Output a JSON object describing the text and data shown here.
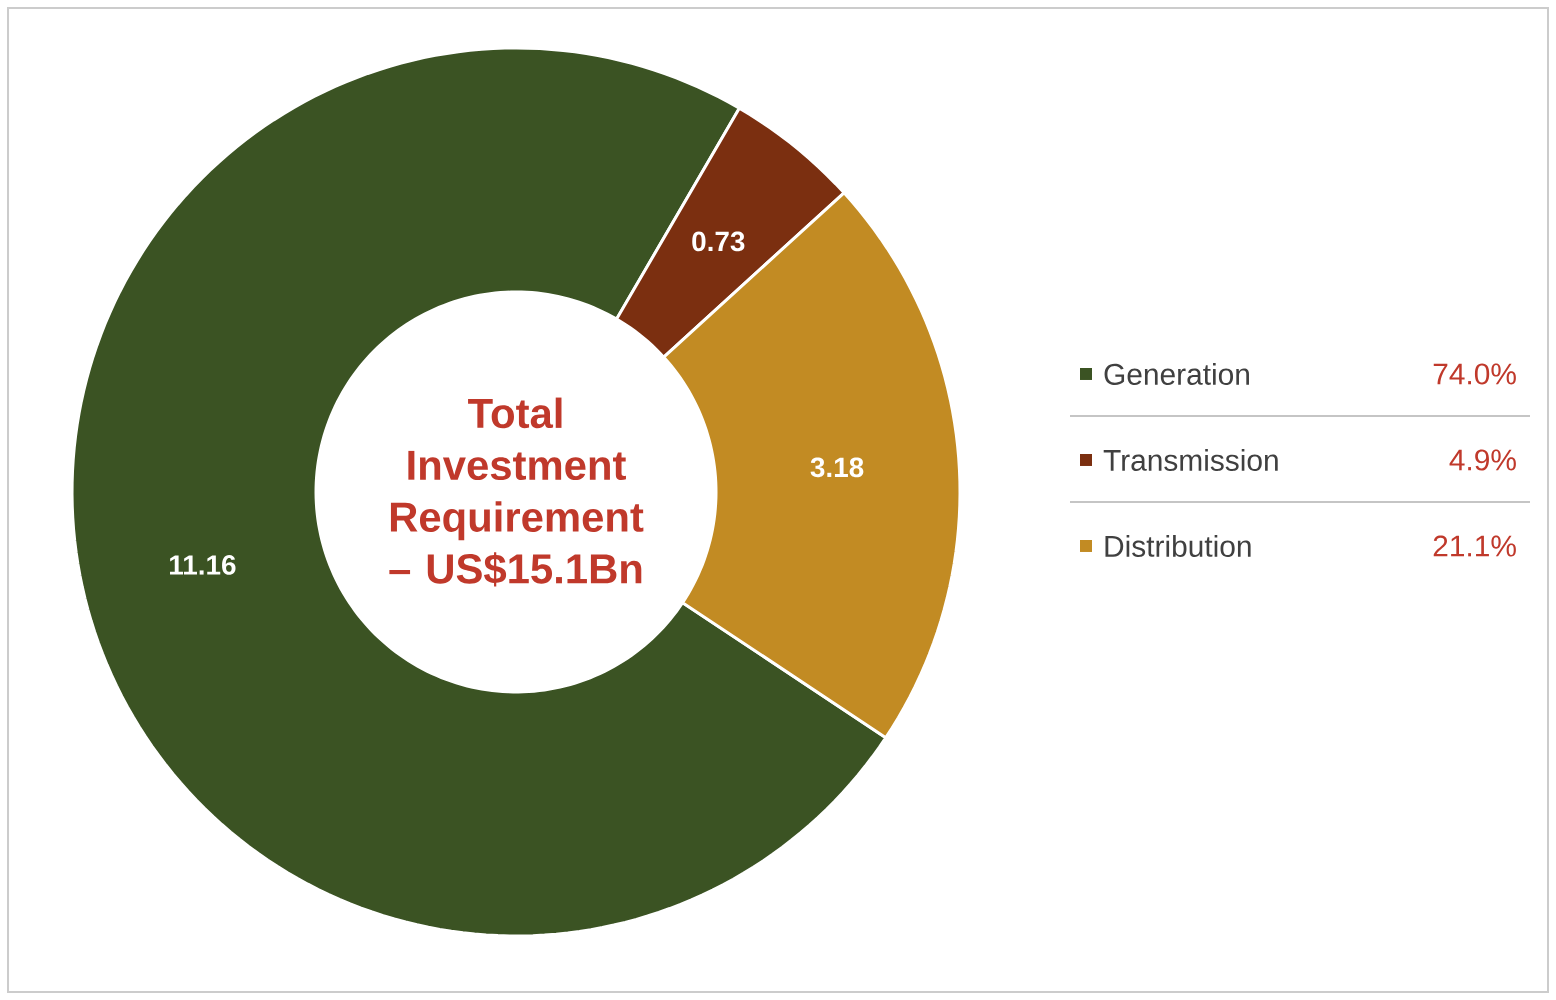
{
  "chart_data": {
    "type": "donut",
    "title": "Total Investment Requirement – US$15.1Bn",
    "categories": [
      "Generation",
      "Transmission",
      "Distribution"
    ],
    "values": [
      11.16,
      0.73,
      3.18
    ],
    "colors": [
      "#3b5323",
      "#7b2f10",
      "#c28b23"
    ],
    "data_labels": true,
    "legend": "right",
    "annotations": [
      "74.0%",
      "4.9%",
      "21.1%"
    ]
  }
}
